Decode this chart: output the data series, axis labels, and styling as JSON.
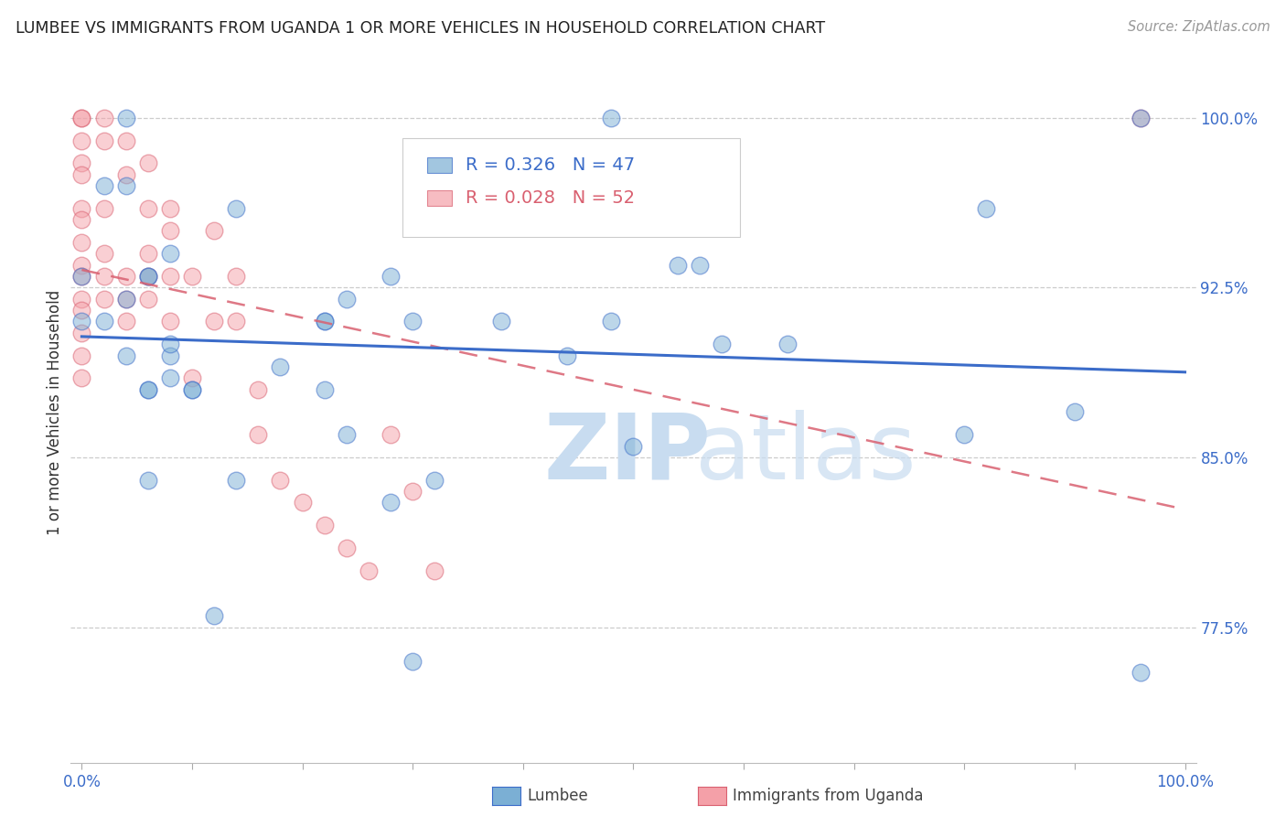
{
  "title": "LUMBEE VS IMMIGRANTS FROM UGANDA 1 OR MORE VEHICLES IN HOUSEHOLD CORRELATION CHART",
  "source": "Source: ZipAtlas.com",
  "ylabel": "1 or more Vehicles in Household",
  "y_axis_labels": [
    "77.5%",
    "85.0%",
    "92.5%",
    "100.0%"
  ],
  "y_axis_values": [
    0.775,
    0.85,
    0.925,
    1.0
  ],
  "ylim": [
    0.715,
    1.025
  ],
  "xlim": [
    -0.01,
    1.01
  ],
  "lumbee_R": 0.326,
  "lumbee_N": 47,
  "uganda_R": 0.028,
  "uganda_N": 52,
  "legend_labels": [
    "Lumbee",
    "Immigrants from Uganda"
  ],
  "blue_color": "#7BAFD4",
  "pink_color": "#F4A0A8",
  "line_blue": "#3B6CC9",
  "line_pink": "#D96070",
  "watermark_zip": "ZIP",
  "watermark_atlas": "atlas",
  "lumbee_x": [
    0.0,
    0.0,
    0.02,
    0.02,
    0.04,
    0.04,
    0.04,
    0.06,
    0.06,
    0.06,
    0.06,
    0.08,
    0.08,
    0.08,
    0.1,
    0.12,
    0.14,
    0.14,
    0.18,
    0.22,
    0.22,
    0.24,
    0.24,
    0.28,
    0.28,
    0.3,
    0.32,
    0.38,
    0.44,
    0.48,
    0.48,
    0.5,
    0.54,
    0.56,
    0.58,
    0.64,
    0.8,
    0.82,
    0.9,
    0.96,
    0.96,
    0.04,
    0.06,
    0.08,
    0.1,
    0.22,
    0.3
  ],
  "lumbee_y": [
    0.93,
    0.91,
    0.97,
    0.91,
    0.97,
    1.0,
    0.92,
    0.93,
    0.93,
    0.88,
    0.84,
    0.94,
    0.895,
    0.885,
    0.88,
    0.78,
    0.96,
    0.84,
    0.89,
    0.91,
    0.88,
    0.92,
    0.86,
    0.93,
    0.83,
    0.91,
    0.84,
    0.91,
    0.895,
    1.0,
    0.91,
    0.855,
    0.935,
    0.935,
    0.9,
    0.9,
    0.86,
    0.96,
    0.87,
    1.0,
    0.755,
    0.895,
    0.88,
    0.9,
    0.88,
    0.91,
    0.76
  ],
  "uganda_x": [
    0.0,
    0.0,
    0.0,
    0.0,
    0.0,
    0.0,
    0.0,
    0.0,
    0.0,
    0.0,
    0.0,
    0.02,
    0.02,
    0.02,
    0.02,
    0.02,
    0.02,
    0.04,
    0.04,
    0.04,
    0.04,
    0.04,
    0.06,
    0.06,
    0.06,
    0.06,
    0.06,
    0.08,
    0.08,
    0.08,
    0.08,
    0.1,
    0.1,
    0.12,
    0.12,
    0.14,
    0.14,
    0.16,
    0.16,
    0.18,
    0.2,
    0.22,
    0.24,
    0.26,
    0.28,
    0.3,
    0.32,
    0.96,
    0.0,
    0.0,
    0.0,
    0.0
  ],
  "uganda_y": [
    1.0,
    1.0,
    0.99,
    0.98,
    0.975,
    0.96,
    0.955,
    0.945,
    0.935,
    0.93,
    0.92,
    1.0,
    0.99,
    0.96,
    0.94,
    0.93,
    0.92,
    0.99,
    0.975,
    0.93,
    0.92,
    0.91,
    0.98,
    0.96,
    0.94,
    0.93,
    0.92,
    0.96,
    0.95,
    0.93,
    0.91,
    0.93,
    0.885,
    0.95,
    0.91,
    0.93,
    0.91,
    0.88,
    0.86,
    0.84,
    0.83,
    0.82,
    0.81,
    0.8,
    0.86,
    0.835,
    0.8,
    1.0,
    0.915,
    0.905,
    0.895,
    0.885
  ]
}
